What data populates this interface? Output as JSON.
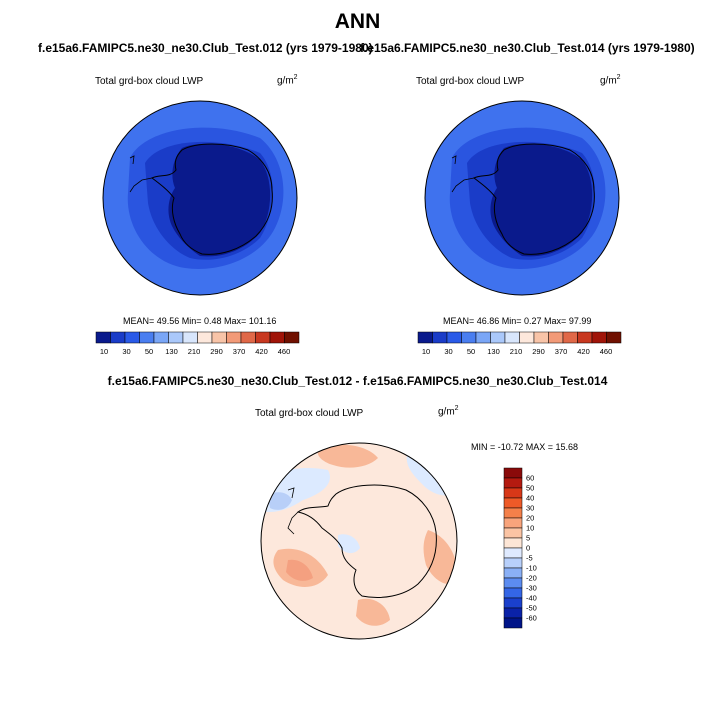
{
  "header": {
    "title": "ANN",
    "case1": "f.e15a6.FAMIPC5.ne30_ne30.Club_Test.012 (yrs 1979-1980)",
    "case2": "f.e15a6.FAMIPC5.ne30_ne30.Club_Test.014 (yrs 1979-1980)",
    "diff_title": "f.e15a6.FAMIPC5.ne30_ne30.Club_Test.012 - f.e15a6.FAMIPC5.ne30_ne30.Club_Test.014"
  },
  "panels": [
    {
      "variable": "Total grd-box cloud LWP",
      "units_base": "g/m",
      "units_exp": "2",
      "stats": "MEAN=  49.56  Min=   0.48  Max= 101.16"
    },
    {
      "variable": "Total grd-box cloud LWP",
      "units_base": "g/m",
      "units_exp": "2",
      "stats": "MEAN=  46.86  Min=   0.27  Max=  97.99"
    },
    {
      "variable": "Total grd-box cloud LWP",
      "units_base": "g/m",
      "units_exp": "2",
      "stats": "MIN = -10.72 MAX =  15.68"
    }
  ],
  "colorbar_abs": {
    "labels": [
      "10",
      "30",
      "50",
      "130",
      "210",
      "290",
      "370",
      "420",
      "460"
    ],
    "colors": [
      "#0a1a8c",
      "#1a3cc8",
      "#2a5ae8",
      "#4a7ef0",
      "#7aa6f6",
      "#aac8fa",
      "#d8e6fc",
      "#fde8dc",
      "#f8c4a8",
      "#f29a78",
      "#e06848",
      "#c83820",
      "#a01408",
      "#701000"
    ]
  },
  "colorbar_diff": {
    "labels": [
      "60",
      "50",
      "40",
      "30",
      "20",
      "10",
      "5",
      "0",
      "-5",
      "-10",
      "-20",
      "-30",
      "-40",
      "-50",
      "-60"
    ],
    "colors": [
      "#8a0a0a",
      "#b41a10",
      "#d83818",
      "#ee5a28",
      "#f4804a",
      "#f8a47c",
      "#fbc4a4",
      "#fde6d6",
      "#dfeaff",
      "#b8d0fb",
      "#8ab0f6",
      "#5c8cf0",
      "#3466e6",
      "#1a40cc",
      "#0a22a8",
      "#001488"
    ]
  },
  "map_colors": {
    "ocean_abs": "#3f72ee",
    "band_abs": "#2a55e0",
    "coast_abs": "#1a3cc8",
    "interior_abs": "#0a1a8c",
    "diff_base": "#fde8dc",
    "diff_warm": "#f8b898",
    "diff_warm2": "#f4a080",
    "diff_cool": "#dceaff",
    "diff_cool2": "#b8cff8"
  }
}
